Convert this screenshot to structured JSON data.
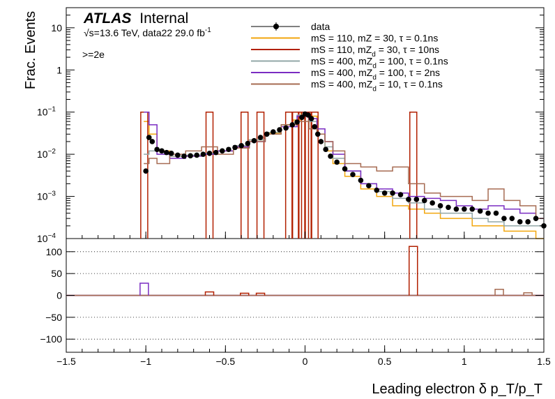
{
  "chart_data": {
    "type": "line",
    "experiment": "ATLAS",
    "status": "Internal",
    "energy_prefix": "√s=13.6 TeV, data22 29.0 fb",
    "energy_sup": "-1",
    "selection": ">=2e",
    "xlabel": "Leading electron δ p_T/p_T",
    "ylabel": "Frac. Events",
    "xlim": [
      -1.5,
      1.5
    ],
    "x_ticks": [
      -1.5,
      -1,
      -0.5,
      0,
      0.5,
      1,
      1.5
    ],
    "x_tick_labels": [
      "−1.5",
      "−1",
      "−0.5",
      "0",
      "0.5",
      "1",
      "1.5"
    ],
    "top_panel": {
      "yscale": "log",
      "ylim": [
        0.0001,
        30
      ],
      "y_ticks": [
        0.0001,
        0.001,
        0.01,
        0.1,
        1,
        10
      ],
      "y_tick_labels": [
        {
          "base": "10",
          "exp": "−4"
        },
        {
          "base": "10",
          "exp": "−3"
        },
        {
          "base": "10",
          "exp": "−2"
        },
        {
          "base": "10",
          "exp": "−1"
        },
        {
          "base": "1",
          "exp": ""
        },
        {
          "base": "10",
          "exp": ""
        }
      ]
    },
    "bottom_panel": {
      "ylim": [
        -130,
        130
      ],
      "y_ticks": [
        -100,
        -50,
        0,
        50,
        100
      ],
      "y_tick_labels": [
        "−100",
        "−50",
        "0",
        "50",
        "100"
      ],
      "gridlines": [
        -100,
        -50,
        50,
        100
      ]
    },
    "legend": {
      "position": "top-right",
      "entries": [
        {
          "pre": "data",
          "sub": "",
          "post": "",
          "color": "#000000",
          "marker": "point"
        },
        {
          "pre": "mS = 110, mZ",
          "sub": "",
          "post": " = 30, τ = 0.1ns",
          "color": "#f2a60d",
          "marker": "line"
        },
        {
          "pre": "mS = 110, mZ",
          "sub": "d",
          "post": " = 30, τ = 10ns",
          "color": "#b22000",
          "marker": "line"
        },
        {
          "pre": "mS = 400, mZ",
          "sub": "d",
          "post": " = 100, τ = 0.1ns",
          "color": "#92a7a7",
          "marker": "line"
        },
        {
          "pre": "mS = 400, mZ",
          "sub": "d",
          "post": " = 100, τ = 2ns",
          "color": "#7a2cc2",
          "marker": "line"
        },
        {
          "pre": "mS = 400, mZ",
          "sub": "d",
          "post": " = 10, τ = 0.1ns",
          "color": "#a66b52",
          "marker": "line"
        }
      ]
    },
    "series": [
      {
        "name": "data",
        "color": "#000000",
        "x": [
          -1.0,
          -0.98,
          -0.96,
          -0.93,
          -0.9,
          -0.87,
          -0.84,
          -0.8,
          -0.76,
          -0.72,
          -0.68,
          -0.64,
          -0.6,
          -0.56,
          -0.52,
          -0.48,
          -0.44,
          -0.4,
          -0.36,
          -0.32,
          -0.28,
          -0.24,
          -0.2,
          -0.16,
          -0.12,
          -0.08,
          -0.05,
          -0.02,
          0.0,
          0.02,
          0.04,
          0.06,
          0.08,
          0.1,
          0.13,
          0.16,
          0.2,
          0.25,
          0.3,
          0.35,
          0.4,
          0.45,
          0.5,
          0.55,
          0.6,
          0.65,
          0.7,
          0.75,
          0.8,
          0.85,
          0.9,
          0.95,
          1.0,
          1.05,
          1.1,
          1.15,
          1.2,
          1.25,
          1.3,
          1.35,
          1.4,
          1.45,
          1.5
        ],
        "y": [
          0.004,
          0.025,
          0.02,
          0.013,
          0.012,
          0.011,
          0.0105,
          0.0095,
          0.009,
          0.0092,
          0.0095,
          0.01,
          0.0105,
          0.011,
          0.012,
          0.013,
          0.0145,
          0.016,
          0.018,
          0.021,
          0.025,
          0.03,
          0.034,
          0.038,
          0.042,
          0.05,
          0.058,
          0.075,
          0.09,
          0.085,
          0.07,
          0.045,
          0.03,
          0.02,
          0.013,
          0.009,
          0.0065,
          0.0045,
          0.0033,
          0.0024,
          0.0018,
          0.0014,
          0.0012,
          0.0012,
          0.0011,
          0.00085,
          0.00085,
          0.0008,
          0.0007,
          0.0006,
          0.00055,
          0.0005,
          0.0005,
          0.0005,
          0.00045,
          0.0004,
          0.0004,
          0.0003,
          0.0003,
          0.00025,
          0.00025,
          0.0003,
          0.0002
        ]
      },
      {
        "name": "mS = 110, mZ = 30, τ = 0.1ns",
        "color": "#f2a60d",
        "x": [
          -1.0,
          -0.96,
          -0.9,
          -0.8,
          -0.7,
          -0.6,
          -0.5,
          -0.4,
          -0.3,
          -0.2,
          -0.1,
          -0.05,
          0.0,
          0.05,
          0.1,
          0.15,
          0.2,
          0.3,
          0.4,
          0.5,
          0.6,
          0.7,
          0.8,
          0.9,
          1.0,
          1.1,
          1.2,
          1.3,
          1.4,
          1.5
        ],
        "y": [
          0.06,
          0.03,
          0.012,
          0.009,
          0.009,
          0.01,
          0.012,
          0.015,
          0.022,
          0.032,
          0.05,
          0.065,
          0.1,
          0.08,
          0.03,
          0.012,
          0.006,
          0.003,
          0.0015,
          0.001,
          0.0006,
          0.0005,
          0.0004,
          0.0003,
          0.0003,
          0.0002,
          0.0002,
          0.00015,
          0.00015,
          0.0001
        ]
      },
      {
        "name": "mS = 110, mZ = 30, τ = 10ns",
        "color": "#b22000",
        "x": [
          -1.01,
          -0.6,
          -0.38,
          -0.28,
          -0.1,
          -0.06,
          -0.02,
          0.0,
          0.02,
          0.06,
          0.68
        ],
        "y": [
          0.1,
          0.1,
          0.1,
          0.1,
          0.1,
          0.1,
          0.1,
          0.1,
          0.1,
          0.1,
          0.1
        ]
      },
      {
        "name": "mS = 400, mZ = 100, τ = 0.1ns",
        "color": "#92a7a7",
        "x": [
          -1.0,
          -0.96,
          -0.9,
          -0.8,
          -0.7,
          -0.6,
          -0.5,
          -0.4,
          -0.3,
          -0.2,
          -0.1,
          0.0,
          0.05,
          0.1,
          0.15,
          0.2,
          0.3,
          0.4,
          0.5,
          0.6,
          0.7,
          0.8,
          0.9,
          1.0,
          1.1,
          1.2,
          1.3,
          1.4,
          1.5
        ],
        "y": [
          0.01,
          0.012,
          0.01,
          0.009,
          0.0095,
          0.0105,
          0.012,
          0.016,
          0.022,
          0.033,
          0.05,
          0.085,
          0.06,
          0.03,
          0.015,
          0.008,
          0.004,
          0.002,
          0.0013,
          0.0009,
          0.0007,
          0.0005,
          0.0004,
          0.0004,
          0.0003,
          0.00025,
          0.0002,
          0.0002,
          0.0002
        ]
      },
      {
        "name": "mS = 400, mZ = 100, τ = 2ns",
        "color": "#7a2cc2",
        "x": [
          -1.0,
          -0.96,
          -0.9,
          -0.8,
          -0.7,
          -0.6,
          -0.5,
          -0.4,
          -0.3,
          -0.2,
          -0.1,
          0.0,
          0.05,
          0.1,
          0.15,
          0.2,
          0.3,
          0.4,
          0.5,
          0.6,
          0.7,
          0.8,
          0.9,
          1.0,
          1.1,
          1.2,
          1.3,
          1.4,
          1.5
        ],
        "y": [
          0.1,
          0.05,
          0.01,
          0.008,
          0.009,
          0.01,
          0.012,
          0.015,
          0.02,
          0.03,
          0.045,
          0.08,
          0.07,
          0.04,
          0.02,
          0.01,
          0.004,
          0.002,
          0.0015,
          0.0012,
          0.001,
          0.0009,
          0.0008,
          0.0006,
          0.0005,
          0.0006,
          0.0005,
          0.0004,
          0.0003
        ]
      },
      {
        "name": "mS = 400, mZ = 10, τ = 0.1ns",
        "color": "#a66b52",
        "x": [
          -1.0,
          -0.96,
          -0.9,
          -0.8,
          -0.7,
          -0.6,
          -0.5,
          -0.4,
          -0.3,
          -0.2,
          -0.1,
          0.0,
          0.05,
          0.1,
          0.15,
          0.2,
          0.3,
          0.4,
          0.5,
          0.6,
          0.7,
          0.8,
          0.9,
          1.0,
          1.1,
          1.2,
          1.3,
          1.4,
          1.5
        ],
        "y": [
          0.006,
          0.008,
          0.006,
          0.01,
          0.012,
          0.015,
          0.01,
          0.014,
          0.02,
          0.03,
          0.05,
          0.06,
          0.04,
          0.03,
          0.02,
          0.012,
          0.006,
          0.005,
          0.004,
          0.005,
          0.002,
          0.0012,
          0.001,
          0.001,
          0.0008,
          0.0015,
          0.0008,
          0.0006,
          0.0003
        ]
      }
    ],
    "ratio_spikes": [
      {
        "series": 4,
        "x": -1.01,
        "y": 28
      },
      {
        "series": 2,
        "x": -0.6,
        "y": 8
      },
      {
        "series": 2,
        "x": -0.38,
        "y": 5
      },
      {
        "series": 2,
        "x": -0.28,
        "y": 5
      },
      {
        "series": 2,
        "x": 0.68,
        "y": 112
      },
      {
        "series": 5,
        "x": 1.22,
        "y": 14
      },
      {
        "series": 5,
        "x": 1.4,
        "y": 6
      }
    ]
  }
}
